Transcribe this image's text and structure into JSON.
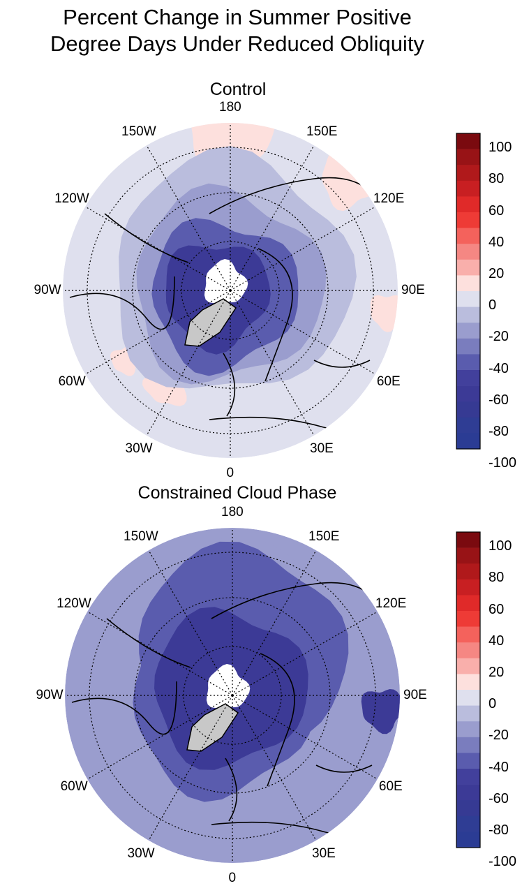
{
  "title_line1": "Percent Change in Summer Positive",
  "title_line2": "Degree Days Under Reduced Obliquity",
  "panels": [
    {
      "title": "Control"
    },
    {
      "title": "Constrained Cloud Phase"
    }
  ],
  "longitude_labels": [
    "180",
    "150E",
    "120E",
    "90E",
    "60E",
    "30E",
    "0",
    "30W",
    "60W",
    "90W",
    "120W",
    "150W"
  ],
  "colorbar": {
    "labels": [
      "100",
      "80",
      "60",
      "40",
      "20",
      "0",
      "-20",
      "-40",
      "-60",
      "-80",
      "-100"
    ],
    "colors": [
      "#7a0a0f",
      "#981316",
      "#b0191b",
      "#c81f22",
      "#e02a29",
      "#ee3b36",
      "#f4625c",
      "#f58783",
      "#f9afab",
      "#fde0dd",
      "#dfe0ee",
      "#babddd",
      "#9a9dce",
      "#7a7dbe",
      "#5a5cae",
      "#42409c",
      "#3c3a96",
      "#363a93",
      "#2f3d94",
      "#2b3c94"
    ]
  },
  "map_colors": {
    "outer": "#dfe0ee",
    "light": "#babddd",
    "mid": "#9a9dce",
    "dark": "#5a5cae",
    "deep": "#3c3a96",
    "positive": "#fde0dd",
    "ice": "#c8c8c8",
    "nodata": "#ffffff"
  }
}
